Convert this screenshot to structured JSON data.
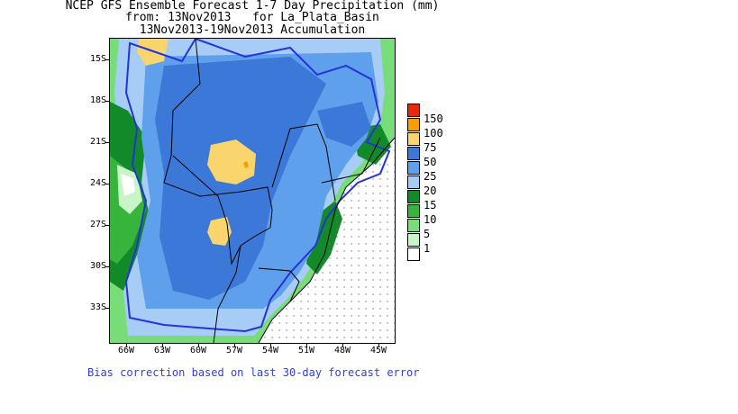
{
  "title": {
    "line1": "NCEP GFS Ensemble Forecast 1-7 Day Precipitation (mm)",
    "line2": "from: 13Nov2013   for La_Plata_Basin",
    "line3": "13Nov2013-19Nov2013 Accumulation"
  },
  "axes": {
    "lat_labels": [
      "15S",
      "18S",
      "21S",
      "24S",
      "27S",
      "30S",
      "33S"
    ],
    "lon_labels": [
      "66W",
      "63W",
      "60W",
      "57W",
      "54W",
      "51W",
      "48W",
      "45W"
    ]
  },
  "legend": {
    "levels": [
      {
        "label": "150",
        "color": "#e8280a"
      },
      {
        "label": "100",
        "color": "#f5a000"
      },
      {
        "label": "75",
        "color": "#fad56e"
      },
      {
        "label": "50",
        "color": "#3c78d8"
      },
      {
        "label": "25",
        "color": "#5ea0ec"
      },
      {
        "label": "20",
        "color": "#a7ccf5"
      },
      {
        "label": "15",
        "color": "#138a2a"
      },
      {
        "label": "10",
        "color": "#37b43c"
      },
      {
        "label": "5",
        "color": "#78dc78"
      },
      {
        "label": "1",
        "color": "#c8f5c8"
      }
    ],
    "bottom_color": "#ffffff"
  },
  "footer": "Bias correction based on last 30-day forecast error"
}
